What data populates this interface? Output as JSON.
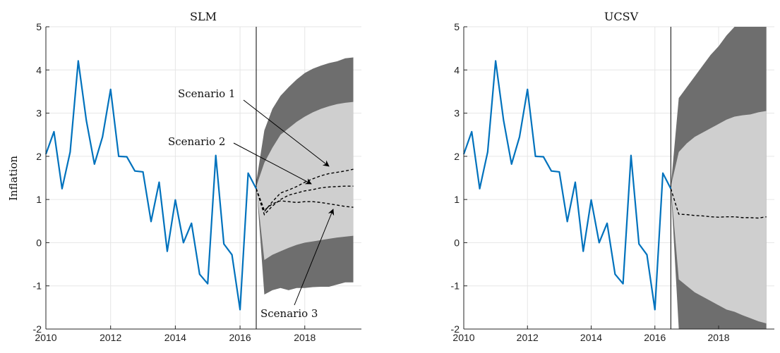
{
  "colors": {
    "series": "#0072BD",
    "band_outer": "#6e6e6e",
    "band_inner": "#cfcfcf",
    "grid": "#e6e6e6",
    "axis": "#262626",
    "scenario": "#000000"
  },
  "chart_data": [
    {
      "type": "line",
      "title": "SLM",
      "xlabel": "",
      "ylabel": "Inflation",
      "xlim": [
        2010,
        2019.75
      ],
      "ylim": [
        -2,
        5
      ],
      "xticks": [
        2010,
        2012,
        2014,
        2016,
        2018
      ],
      "yticks": [
        -2,
        -1,
        0,
        1,
        2,
        3,
        4,
        5
      ],
      "xtick_labels": [
        "2010",
        "2012",
        "2014",
        "2016",
        "2018"
      ],
      "ytick_labels": [
        "-2",
        "-1",
        "0",
        "1",
        "2",
        "3",
        "4",
        "5"
      ],
      "grid": true,
      "forecast_start": 2016.5,
      "series": [
        {
          "x": [
            2010.0,
            2010.25,
            2010.5,
            2010.75,
            2011.0,
            2011.25,
            2011.5,
            2011.75,
            2012.0,
            2012.25,
            2012.5,
            2012.75,
            2013.0,
            2013.25,
            2013.5,
            2013.75,
            2014.0,
            2014.25,
            2014.5,
            2014.75,
            2015.0,
            2015.25,
            2015.5,
            2015.75,
            2016.0,
            2016.25,
            2016.5
          ],
          "y": [
            2.05,
            2.57,
            1.25,
            2.1,
            4.21,
            2.83,
            1.82,
            2.45,
            3.55,
            2.0,
            1.99,
            1.66,
            1.64,
            0.49,
            1.4,
            -0.2,
            0.99,
            0.0,
            0.45,
            -0.73,
            -0.95,
            2.02,
            -0.03,
            -0.28,
            -1.55,
            1.61,
            1.25
          ]
        }
      ],
      "bands": [
        {
          "x": [
            2016.5,
            2016.75,
            2017.0,
            2017.25,
            2017.5,
            2017.75,
            2018.0,
            2018.25,
            2018.5,
            2018.75,
            2019.0,
            2019.25,
            2019.5
          ],
          "lower": [
            1.4,
            -1.2,
            -1.1,
            -1.05,
            -1.1,
            -1.05,
            -1.05,
            -1.03,
            -1.02,
            -1.02,
            -0.97,
            -0.92,
            -0.92
          ],
          "upper": [
            1.4,
            2.6,
            3.1,
            3.4,
            3.6,
            3.78,
            3.93,
            4.03,
            4.1,
            4.16,
            4.2,
            4.27,
            4.29
          ]
        },
        {
          "x": [
            2016.5,
            2016.75,
            2017.0,
            2017.25,
            2017.5,
            2017.75,
            2018.0,
            2018.25,
            2018.5,
            2018.75,
            2019.0,
            2019.25,
            2019.5
          ],
          "lower": [
            1.3,
            -0.4,
            -0.28,
            -0.2,
            -0.12,
            -0.05,
            0.0,
            0.03,
            0.06,
            0.09,
            0.12,
            0.14,
            0.16
          ],
          "upper": [
            1.3,
            1.85,
            2.2,
            2.5,
            2.65,
            2.8,
            2.92,
            3.02,
            3.1,
            3.16,
            3.21,
            3.24,
            3.26
          ]
        }
      ],
      "scenarios": [
        {
          "name": "Scenario 1",
          "x": [
            2016.5,
            2016.75,
            2017.0,
            2017.25,
            2017.5,
            2017.75,
            2018.0,
            2018.25,
            2018.5,
            2018.75,
            2019.0,
            2019.25,
            2019.5
          ],
          "y": [
            1.25,
            0.72,
            0.95,
            1.15,
            1.22,
            1.3,
            1.4,
            1.48,
            1.55,
            1.6,
            1.63,
            1.66,
            1.7
          ]
        },
        {
          "name": "Scenario 2",
          "x": [
            2016.5,
            2016.75,
            2017.0,
            2017.25,
            2017.5,
            2017.75,
            2018.0,
            2018.25,
            2018.5,
            2018.75,
            2019.0,
            2019.25,
            2019.5
          ],
          "y": [
            1.25,
            0.65,
            0.85,
            1.0,
            1.1,
            1.15,
            1.2,
            1.23,
            1.27,
            1.29,
            1.3,
            1.31,
            1.31
          ]
        },
        {
          "name": "Scenario 3",
          "x": [
            2016.5,
            2016.75,
            2017.0,
            2017.25,
            2017.5,
            2017.75,
            2018.0,
            2018.25,
            2018.5,
            2018.75,
            2019.0,
            2019.25,
            2019.5
          ],
          "y": [
            1.25,
            0.75,
            0.9,
            0.97,
            0.95,
            0.93,
            0.95,
            0.95,
            0.93,
            0.9,
            0.87,
            0.84,
            0.82
          ]
        }
      ],
      "annotations": [
        "Scenario 1",
        "Scenario 2",
        "Scenario 3"
      ]
    },
    {
      "type": "line",
      "title": "UCSV",
      "xlabel": "",
      "ylabel": "",
      "xlim": [
        2010,
        2019.75
      ],
      "ylim": [
        -2,
        5
      ],
      "xticks": [
        2010,
        2012,
        2014,
        2016,
        2018
      ],
      "yticks": [
        -2,
        -1,
        0,
        1,
        2,
        3,
        4,
        5
      ],
      "xtick_labels": [
        "2010",
        "2012",
        "2014",
        "2016",
        "2018"
      ],
      "ytick_labels": [
        "-2",
        "-1",
        "0",
        "1",
        "2",
        "3",
        "4",
        "5"
      ],
      "grid": true,
      "forecast_start": 2016.5,
      "series": [
        {
          "x": [
            2010.0,
            2010.25,
            2010.5,
            2010.75,
            2011.0,
            2011.25,
            2011.5,
            2011.75,
            2012.0,
            2012.25,
            2012.5,
            2012.75,
            2013.0,
            2013.25,
            2013.5,
            2013.75,
            2014.0,
            2014.25,
            2014.5,
            2014.75,
            2015.0,
            2015.25,
            2015.5,
            2015.75,
            2016.0,
            2016.25,
            2016.5
          ],
          "y": [
            2.05,
            2.57,
            1.25,
            2.1,
            4.21,
            2.83,
            1.82,
            2.45,
            3.55,
            2.0,
            1.99,
            1.66,
            1.64,
            0.49,
            1.4,
            -0.2,
            0.99,
            0.0,
            0.45,
            -0.73,
            -0.95,
            2.02,
            -0.03,
            -0.28,
            -1.55,
            1.61,
            1.25
          ]
        }
      ],
      "bands": [
        {
          "x": [
            2016.5,
            2016.75,
            2017.0,
            2017.25,
            2017.5,
            2017.75,
            2018.0,
            2018.25,
            2018.5,
            2018.75,
            2019.0,
            2019.25,
            2019.5
          ],
          "lower": [
            1.3,
            -2.0,
            -2.0,
            -2.0,
            -2.0,
            -2.0,
            -2.0,
            -2.0,
            -2.0,
            -2.0,
            -2.0,
            -2.0,
            -2.0
          ],
          "upper": [
            1.3,
            3.35,
            3.6,
            3.85,
            4.1,
            4.35,
            4.55,
            4.8,
            5.0,
            5.0,
            5.0,
            5.0,
            5.0
          ]
        },
        {
          "x": [
            2016.5,
            2016.75,
            2017.0,
            2017.25,
            2017.5,
            2017.75,
            2018.0,
            2018.25,
            2018.5,
            2018.75,
            2019.0,
            2019.25,
            2019.5
          ],
          "lower": [
            1.3,
            -0.85,
            -1.0,
            -1.15,
            -1.25,
            -1.35,
            -1.45,
            -1.55,
            -1.6,
            -1.68,
            -1.75,
            -1.82,
            -1.87
          ],
          "upper": [
            1.3,
            2.1,
            2.3,
            2.45,
            2.55,
            2.65,
            2.75,
            2.85,
            2.92,
            2.95,
            2.97,
            3.02,
            3.05
          ]
        }
      ],
      "scenarios": [
        {
          "x": [
            2016.5,
            2016.75,
            2017.0,
            2017.25,
            2017.5,
            2017.75,
            2018.0,
            2018.25,
            2018.5,
            2018.75,
            2019.0,
            2019.25,
            2019.5
          ],
          "y": [
            1.25,
            0.66,
            0.65,
            0.63,
            0.62,
            0.6,
            0.59,
            0.6,
            0.6,
            0.58,
            0.58,
            0.57,
            0.6
          ]
        }
      ],
      "annotations": []
    }
  ]
}
